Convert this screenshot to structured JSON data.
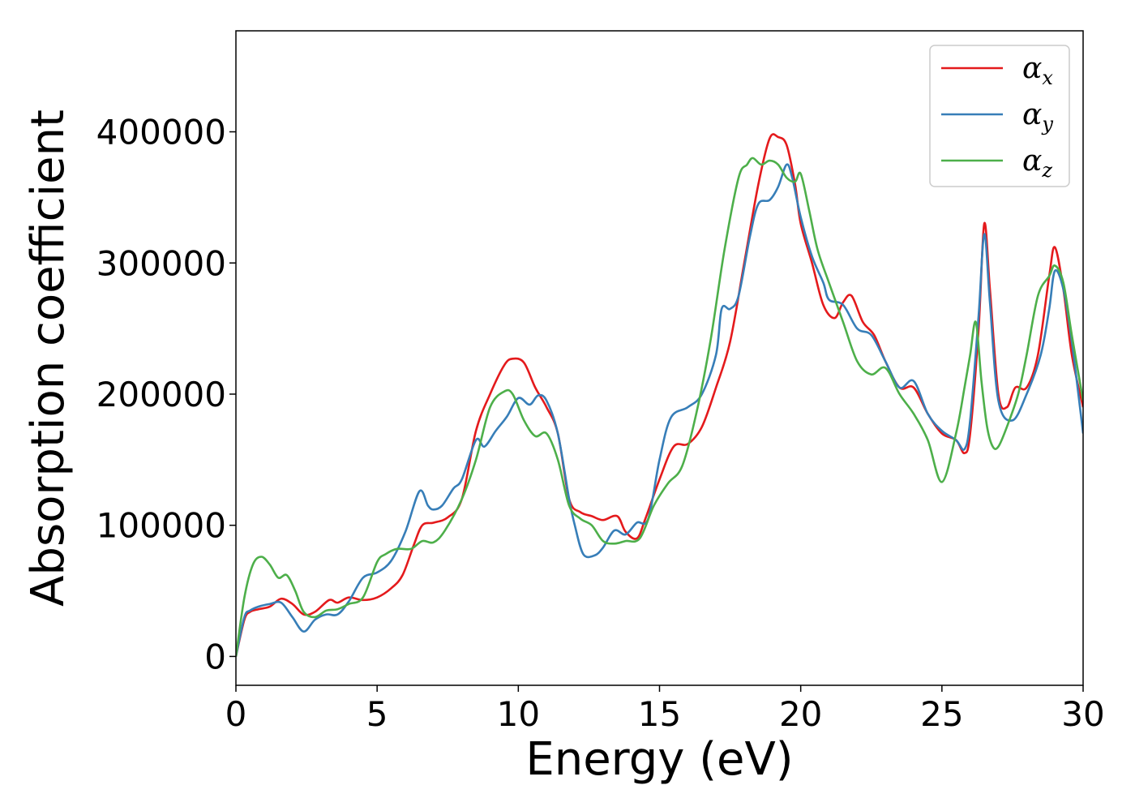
{
  "chart_data": {
    "type": "line",
    "title": "",
    "xlabel": "Energy (eV)",
    "ylabel": "Absorption coefficient",
    "xlim": [
      0,
      30
    ],
    "ylim": [
      -22000,
      477000
    ],
    "xticks": [
      0,
      5,
      10,
      15,
      20,
      25,
      30
    ],
    "yticks": [
      0,
      100000,
      200000,
      300000,
      400000
    ],
    "xtick_labels": [
      "0",
      "5",
      "10",
      "15",
      "20",
      "25",
      "30"
    ],
    "ytick_labels": [
      "0",
      "100000",
      "200000",
      "300000",
      "400000"
    ],
    "grid": false,
    "legend_position": "top-right",
    "series": [
      {
        "name": "αx",
        "legend_base": "α",
        "legend_sub": "x",
        "color": "#e41a1c",
        "x": [
          0,
          0.3,
          0.5,
          0.8,
          1.2,
          1.6,
          2.0,
          2.4,
          2.8,
          3.3,
          3.6,
          4.0,
          4.5,
          5.0,
          5.5,
          5.9,
          6.3,
          6.6,
          7.0,
          7.5,
          8.0,
          8.5,
          9.0,
          9.5,
          9.8,
          10.2,
          10.6,
          11.0,
          11.4,
          11.8,
          12.2,
          12.6,
          13.0,
          13.5,
          13.8,
          14.2,
          14.5,
          15.0,
          15.5,
          16.0,
          16.5,
          17.0,
          17.5,
          18.0,
          18.5,
          18.9,
          19.2,
          19.5,
          19.8,
          20.0,
          20.4,
          20.8,
          21.2,
          21.5,
          21.8,
          22.2,
          22.6,
          23.0,
          23.5,
          24.0,
          24.5,
          25.0,
          25.5,
          25.8,
          26.0,
          26.3,
          26.5,
          26.7,
          27.0,
          27.3,
          27.6,
          28.0,
          28.4,
          28.8,
          29.0,
          29.3,
          29.6,
          30.0
        ],
        "y": [
          0,
          28000,
          34000,
          36000,
          38000,
          44000,
          40000,
          32000,
          34000,
          43000,
          41000,
          45000,
          43000,
          45000,
          52000,
          62000,
          85000,
          100000,
          102000,
          106000,
          120000,
          172000,
          200000,
          222000,
          227000,
          224000,
          205000,
          190000,
          170000,
          120000,
          110000,
          107000,
          104000,
          107000,
          95000,
          90000,
          105000,
          135000,
          160000,
          162000,
          175000,
          205000,
          240000,
          300000,
          360000,
          395000,
          396000,
          390000,
          360000,
          330000,
          300000,
          268000,
          258000,
          270000,
          275000,
          255000,
          245000,
          225000,
          205000,
          205000,
          185000,
          170000,
          165000,
          155000,
          170000,
          250000,
          330000,
          280000,
          200000,
          190000,
          205000,
          205000,
          230000,
          290000,
          312000,
          280000,
          230000,
          190000
        ]
      },
      {
        "name": "αy",
        "legend_base": "α",
        "legend_sub": "y",
        "color": "#377eb8",
        "x": [
          0,
          0.3,
          0.5,
          0.8,
          1.2,
          1.6,
          2.0,
          2.4,
          2.8,
          3.2,
          3.6,
          4.0,
          4.5,
          5.0,
          5.5,
          6.0,
          6.5,
          6.8,
          7.0,
          7.3,
          7.7,
          8.0,
          8.5,
          8.8,
          9.2,
          9.6,
          10.0,
          10.4,
          10.7,
          11.0,
          11.4,
          11.8,
          12.0,
          12.3,
          12.7,
          13.0,
          13.4,
          13.8,
          14.2,
          14.6,
          15.0,
          15.4,
          16.0,
          16.5,
          17.0,
          17.2,
          17.5,
          17.8,
          18.2,
          18.5,
          18.9,
          19.2,
          19.5,
          19.7,
          20.0,
          20.4,
          20.8,
          21.0,
          21.5,
          22.0,
          22.5,
          23.0,
          23.5,
          24.0,
          24.5,
          25.0,
          25.5,
          25.8,
          26.0,
          26.3,
          26.5,
          26.7,
          27.0,
          27.5,
          28.0,
          28.5,
          28.8,
          29.0,
          29.3,
          29.6,
          30.0
        ],
        "y": [
          0,
          30000,
          35000,
          38000,
          40000,
          41000,
          30000,
          19000,
          28000,
          32000,
          32000,
          42000,
          60000,
          64000,
          73000,
          95000,
          126000,
          115000,
          112000,
          115000,
          128000,
          135000,
          165000,
          160000,
          172000,
          183000,
          197000,
          192000,
          199000,
          195000,
          170000,
          120000,
          100000,
          78000,
          77000,
          83000,
          96000,
          93000,
          102000,
          105000,
          150000,
          182000,
          190000,
          200000,
          230000,
          265000,
          265000,
          275000,
          320000,
          345000,
          348000,
          358000,
          375000,
          365000,
          335000,
          305000,
          285000,
          272000,
          268000,
          250000,
          245000,
          225000,
          205000,
          210000,
          185000,
          172000,
          165000,
          158000,
          180000,
          260000,
          322000,
          270000,
          195000,
          180000,
          200000,
          230000,
          265000,
          294000,
          280000,
          240000,
          170000
        ]
      },
      {
        "name": "αz",
        "legend_base": "α",
        "legend_sub": "z",
        "color": "#4daf4a",
        "x": [
          0,
          0.3,
          0.6,
          0.9,
          1.2,
          1.5,
          1.8,
          2.1,
          2.4,
          2.8,
          3.2,
          3.6,
          4.0,
          4.5,
          5.0,
          5.3,
          5.7,
          6.2,
          6.6,
          7.0,
          7.4,
          8.0,
          8.5,
          9.0,
          9.5,
          9.8,
          10.2,
          10.6,
          11.0,
          11.4,
          11.8,
          12.2,
          12.6,
          13.0,
          13.4,
          13.8,
          14.3,
          14.8,
          15.3,
          15.8,
          16.3,
          16.8,
          17.3,
          17.8,
          18.1,
          18.3,
          18.6,
          18.9,
          19.2,
          19.5,
          19.8,
          20.0,
          20.3,
          20.6,
          21.0,
          21.5,
          22.0,
          22.5,
          23.0,
          23.5,
          24.0,
          24.5,
          25.0,
          25.5,
          25.8,
          26.0,
          26.2,
          26.4,
          26.6,
          26.8,
          27.0,
          27.3,
          27.7,
          28.0,
          28.4,
          28.8,
          29.0,
          29.3,
          29.6,
          30.0
        ],
        "y": [
          0,
          45000,
          70000,
          76000,
          70000,
          60000,
          62000,
          50000,
          34000,
          30000,
          35000,
          36000,
          40000,
          45000,
          72000,
          78000,
          82000,
          82000,
          88000,
          87000,
          96000,
          120000,
          150000,
          190000,
          202000,
          200000,
          180000,
          168000,
          170000,
          150000,
          115000,
          105000,
          100000,
          88000,
          86000,
          88000,
          90000,
          115000,
          132000,
          145000,
          185000,
          240000,
          310000,
          365000,
          375000,
          380000,
          375000,
          378000,
          375000,
          365000,
          362000,
          368000,
          340000,
          310000,
          285000,
          255000,
          225000,
          215000,
          220000,
          200000,
          185000,
          165000,
          133000,
          170000,
          205000,
          230000,
          255000,
          210000,
          175000,
          160000,
          160000,
          175000,
          200000,
          230000,
          275000,
          290000,
          298000,
          285000,
          245000,
          195000
        ]
      }
    ]
  }
}
